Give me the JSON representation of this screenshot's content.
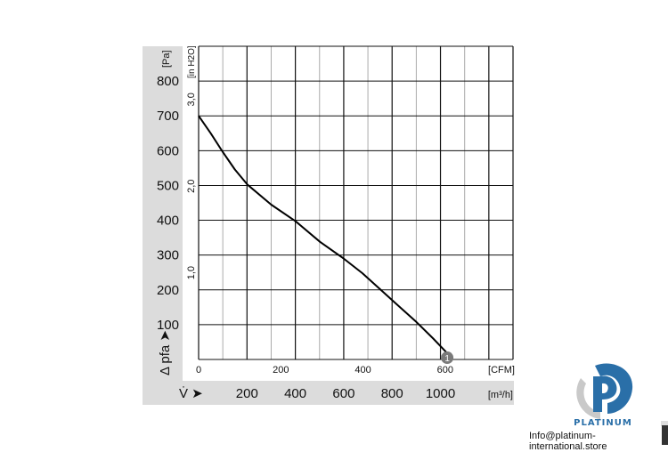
{
  "chart_data": {
    "type": "line",
    "left_axis": {
      "unit": "[Pa]",
      "label": "Δ pfa ➤",
      "label_main": "Δ p",
      "label_sub": "fa",
      "ticks": [
        100,
        200,
        300,
        400,
        500,
        600,
        700,
        800
      ],
      "range": [
        0,
        900
      ]
    },
    "inner_axis": {
      "unit": "[in H2O]",
      "ticks": [
        "1,0",
        "2,0",
        "3,0"
      ],
      "tick_values": [
        1.0,
        2.0,
        3.0
      ]
    },
    "x_axis_cfm": {
      "unit": "[CFM]",
      "ticks": [
        0,
        200,
        400,
        600
      ]
    },
    "x_axis_m3h": {
      "unit": "[m³/h]",
      "label": "V̇ ➤",
      "ticks": [
        200,
        400,
        600,
        800,
        1000
      ],
      "range": [
        0,
        1300
      ]
    },
    "grid": true,
    "series": [
      {
        "x_m3h": [
          0,
          50,
          99,
          150,
          201,
          300,
          401,
          502,
          600,
          677,
          750,
          820,
          900,
          970,
          1032
        ],
        "y_pa": [
          700,
          650,
          597,
          546,
          503,
          445,
          397,
          338,
          290,
          248,
          202,
          158,
          108,
          60,
          15
        ],
        "marker_label": "1",
        "marker_at": [
          1050,
          5
        ]
      }
    ]
  },
  "watermark": {
    "brand": "PLATINUM",
    "email": "Info@platinum-international.store"
  },
  "colors": {
    "panel": "#dcdcdc",
    "grid": "#111111",
    "grid_light": "#aaaaaa",
    "curve": "#000000",
    "marker": "#7a7a7a",
    "brand": "#2a6fa8"
  }
}
